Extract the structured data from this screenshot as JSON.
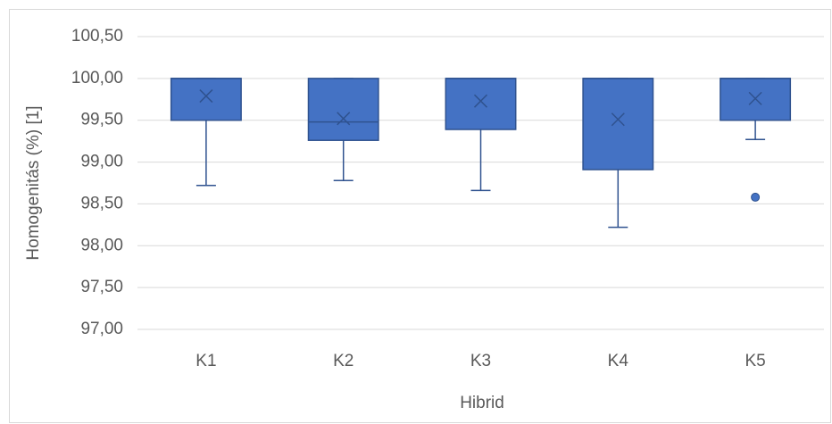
{
  "chart_data": {
    "type": "box",
    "x_label": "Hibrid",
    "y_label": "Homogenitás (%) [1]",
    "categories": [
      "K1",
      "K2",
      "K3",
      "K4",
      "K5"
    ],
    "color": "#4472c4",
    "edge_color": "#2f528f",
    "grid": true,
    "ylim": [
      97,
      100.5
    ],
    "yticks": [
      {
        "value": 97,
        "label": "97,00"
      },
      {
        "value": 97.5,
        "label": "97,50"
      },
      {
        "value": 98,
        "label": "98,00"
      },
      {
        "value": 98.5,
        "label": "98,50"
      },
      {
        "value": 99,
        "label": "99,00"
      },
      {
        "value": 99.5,
        "label": "99,50"
      },
      {
        "value": 100,
        "label": "100,00"
      },
      {
        "value": 100.5,
        "label": "100,50"
      }
    ],
    "boxes": [
      {
        "min": 98.72,
        "q1": 99.5,
        "median": 100,
        "q3": 100,
        "max": 100,
        "mean": 99.79,
        "outliers": []
      },
      {
        "min": 98.78,
        "q1": 99.26,
        "median": 99.48,
        "q3": 100,
        "max": 100,
        "mean": 99.52,
        "outliers": []
      },
      {
        "min": 98.66,
        "q1": 99.39,
        "median": 100,
        "q3": 100,
        "max": 100,
        "mean": 99.73,
        "outliers": []
      },
      {
        "min": 98.22,
        "q1": 98.91,
        "median": 100,
        "q3": 100,
        "max": 100,
        "mean": 99.51,
        "outliers": []
      },
      {
        "min": 99.27,
        "q1": 99.5,
        "median": 100,
        "q3": 100,
        "max": 100,
        "mean": 99.76,
        "outliers": [
          98.58
        ]
      }
    ]
  }
}
